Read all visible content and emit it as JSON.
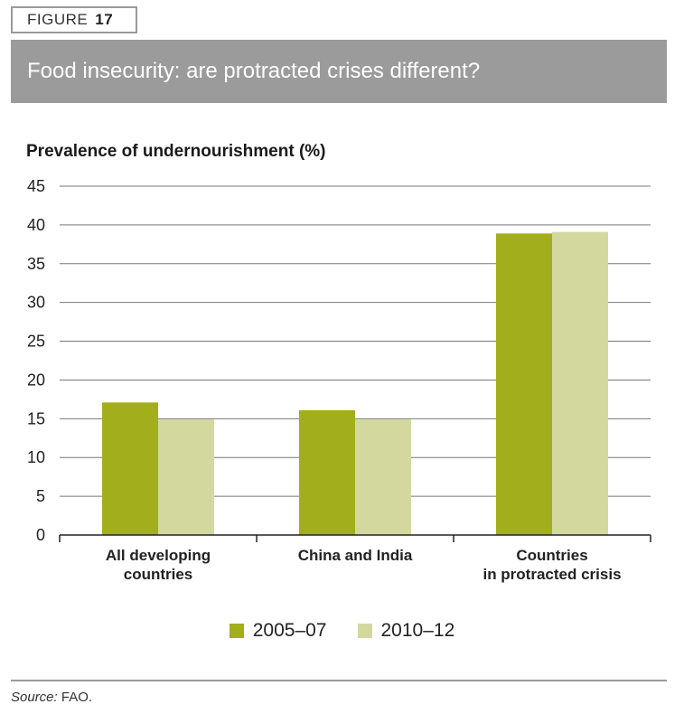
{
  "figure": {
    "label": "FIGURE",
    "number": "17"
  },
  "title": "Food insecurity: are protracted crises different?",
  "source": {
    "lead": "Source:",
    "text": " FAO."
  },
  "colors": {
    "series_2005": "#a2ae1c",
    "series_2010": "#d3d99e",
    "gridline": "#777777",
    "header_bg": "#9b9b9b"
  },
  "chart_data": {
    "type": "bar",
    "ylabel": "Prevalence of undernourishment (%)",
    "ylim": [
      0,
      45
    ],
    "yticks": [
      0,
      5,
      10,
      15,
      20,
      25,
      30,
      35,
      40,
      45
    ],
    "grid": true,
    "legend_position": "bottom",
    "categories": [
      [
        "All developing",
        "countries"
      ],
      [
        "China and India"
      ],
      [
        "Countries",
        "in protracted crisis"
      ]
    ],
    "series": [
      {
        "name": "2005–07",
        "values": [
          17.1,
          16.1,
          38.9
        ]
      },
      {
        "name": "2010–12",
        "values": [
          14.9,
          14.9,
          39.1
        ]
      }
    ]
  }
}
